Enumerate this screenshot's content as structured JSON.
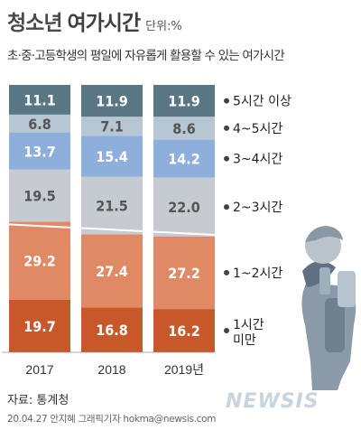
{
  "header": {
    "title_main": "청소년",
    "title_sub": "여가시간",
    "unit": "단위:%",
    "subtitle": "초·중·고등학생의 평일에 자유롭게 활용할 수 있는 여가시간"
  },
  "chart_data": {
    "type": "bar",
    "stacked": true,
    "categories": [
      "2017",
      "2018",
      "2019년"
    ],
    "series": [
      {
        "name": "1시간 미만",
        "values": [
          19.7,
          16.8,
          16.2
        ],
        "color": "#c8582a"
      },
      {
        "name": "1~2시간",
        "values": [
          29.2,
          27.4,
          27.2
        ],
        "color": "#e08a65"
      },
      {
        "name": "2~3시간",
        "values": [
          19.5,
          21.5,
          22.0
        ],
        "color": "#c5cbd0"
      },
      {
        "name": "3~4시간",
        "values": [
          13.7,
          15.4,
          14.2
        ],
        "color": "#8eaedb"
      },
      {
        "name": "4~5시간",
        "values": [
          6.8,
          7.1,
          8.6
        ],
        "color": "#b6c6d3"
      },
      {
        "name": "5시간 이상",
        "values": [
          11.1,
          11.9,
          11.9
        ],
        "color": "#587684"
      }
    ],
    "value_labels": [
      [
        "19.7",
        "16.8",
        "16.2"
      ],
      [
        "29.2",
        "27.4",
        "27.2"
      ],
      [
        "19.5",
        "21.5",
        "22.0"
      ],
      [
        "13.7",
        "15.4",
        "14.2"
      ],
      [
        "6.8",
        "7.1",
        "8.6"
      ],
      [
        "11.1",
        "11.9",
        "11.9"
      ]
    ],
    "ylim": [
      0,
      100
    ],
    "legend_position": "right"
  },
  "footer": {
    "source": "자료: 통계청",
    "credit": "20.04.27 안지혜 그래픽기자 hokma@newsis.com",
    "logo": "NEWSIS"
  }
}
